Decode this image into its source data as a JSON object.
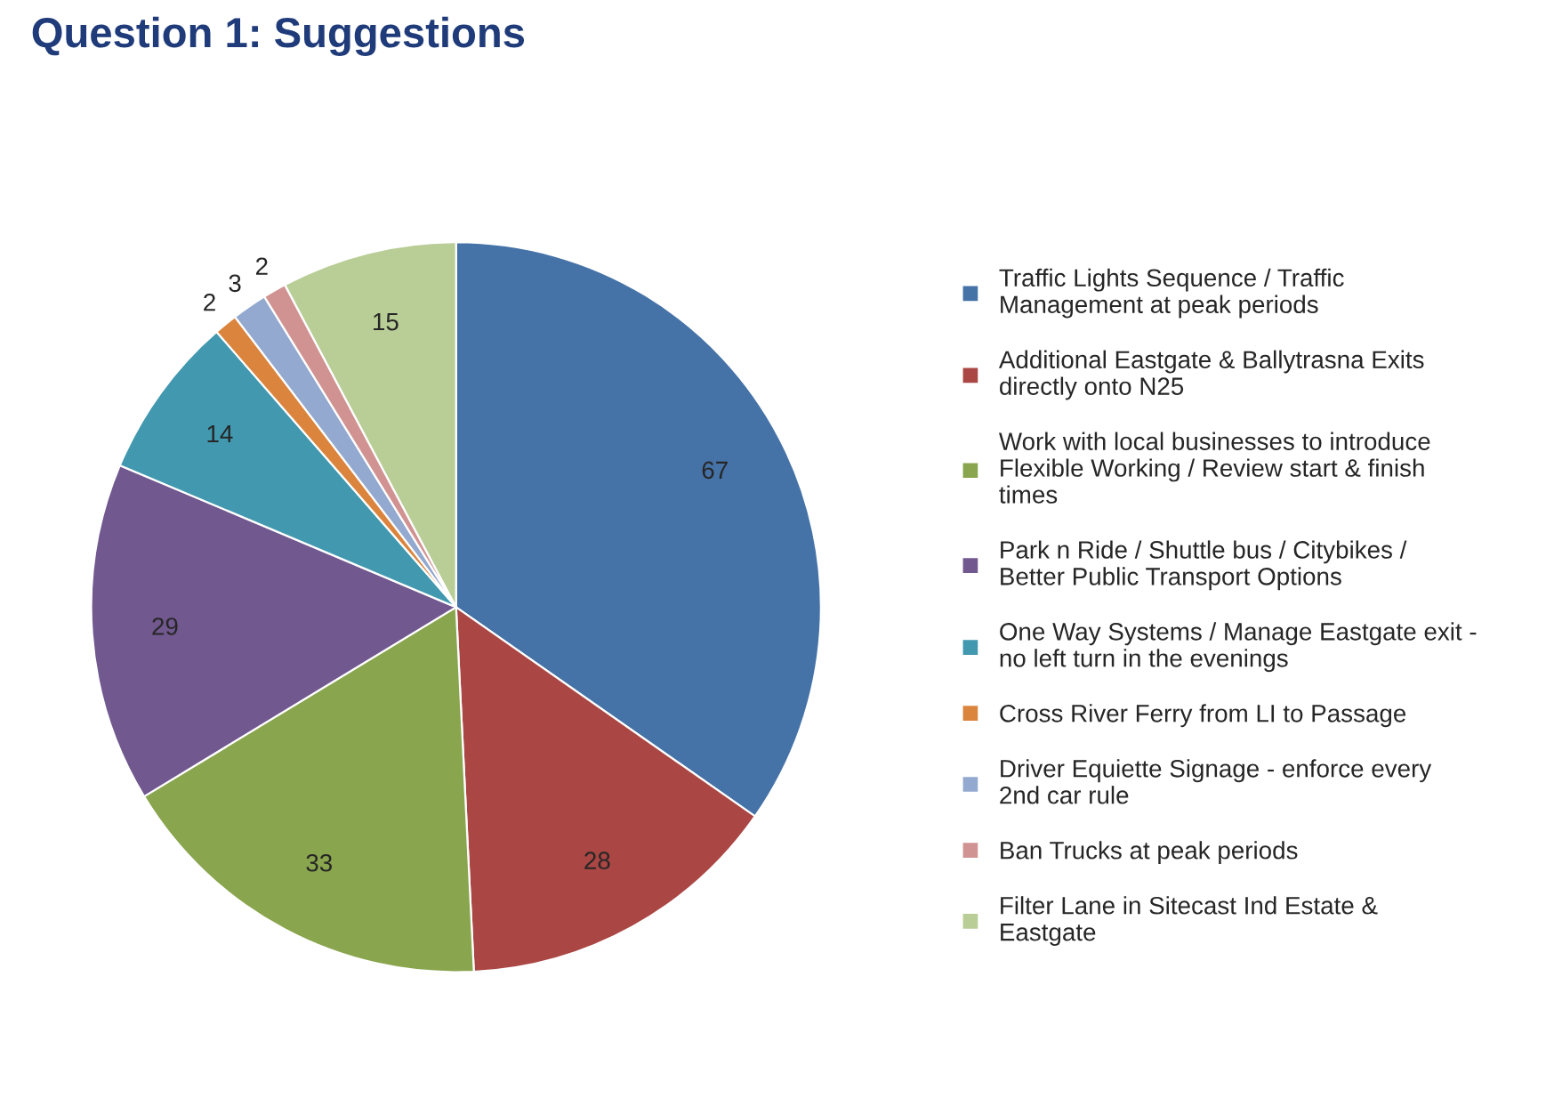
{
  "chart_data": {
    "type": "pie",
    "title": "Question 1: Suggestions",
    "categories": [
      "Traffic Lights Sequence / Traffic Management at peak periods",
      "Additional Eastgate & Ballytrasna Exits directly onto N25",
      "Work with local businesses to introduce Flexible Working / Review start & finish times",
      "Park n Ride / Shuttle bus / Citybikes / Better Public Transport Options",
      "One Way Systems / Manage Eastgate exit - no left turn in the evenings",
      "Cross River Ferry from LI to Passage",
      "Driver Equiette Signage - enforce every 2nd car rule",
      "Ban Trucks at peak periods",
      "Filter Lane in Sitecast Ind Estate & Eastgate"
    ],
    "values": [
      67,
      28,
      33,
      29,
      14,
      2,
      3,
      2,
      15
    ],
    "colors": [
      "#4572a7",
      "#aa4643",
      "#89a54e",
      "#71588f",
      "#4198af",
      "#db843d",
      "#93a9cf",
      "#d19392",
      "#b9cd96"
    ],
    "data_labels": true,
    "legend": "right"
  }
}
